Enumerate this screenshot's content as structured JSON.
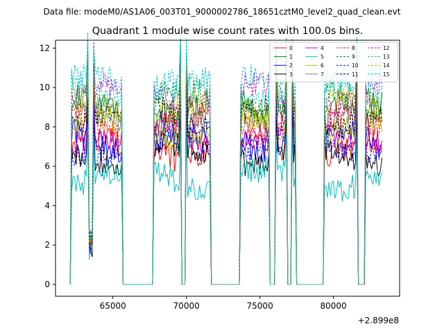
{
  "chart_data": {
    "type": "line",
    "suptitle": "Data file: modeM0/AS1A06_003T01_9000002786_18651cztM0_level2_quad_clean.evt",
    "title": "Quadrant 1 module wise count rates with 100.0s bins.",
    "xlabel": "",
    "ylabel": "",
    "x_offset_label": "+2.899e8",
    "xlim": [
      61100,
      84500
    ],
    "ylim": [
      -0.6,
      12.4
    ],
    "x_ticks": [
      65000,
      70000,
      75000,
      80000
    ],
    "y_ticks": [
      0,
      2,
      4,
      6,
      8,
      10,
      12
    ],
    "grid": false,
    "legend_position": "top-right",
    "active_intervals": [
      [
        62200,
        65600
      ],
      [
        67800,
        69600
      ],
      [
        70000,
        71600
      ],
      [
        73700,
        75600
      ],
      [
        76100,
        76800
      ],
      [
        77200,
        77400
      ],
      [
        79400,
        81600
      ],
      [
        82200,
        83300
      ]
    ],
    "dip_centers": [
      63500,
      69800,
      75900,
      77000,
      81800
    ],
    "series": [
      {
        "name": "0",
        "color": "#ff0000",
        "dash": "solid",
        "level": 6.9
      },
      {
        "name": "1",
        "color": "#008000",
        "dash": "solid",
        "level": 9.0
      },
      {
        "name": "2",
        "color": "#0000ff",
        "dash": "solid",
        "level": 7.3
      },
      {
        "name": "3",
        "color": "#000000",
        "dash": "solid",
        "level": 6.6
      },
      {
        "name": "4",
        "color": "#bf00bf",
        "dash": "solid",
        "level": 7.6
      },
      {
        "name": "5",
        "color": "#00bfbf",
        "dash": "solid",
        "level": 5.4
      },
      {
        "name": "6",
        "color": "#bfbf00",
        "dash": "solid",
        "level": 7.9
      },
      {
        "name": "7",
        "color": "#808080",
        "dash": "solid",
        "level": 8.3
      },
      {
        "name": "8",
        "color": "#ff0000",
        "dash": "dashed",
        "level": 8.1
      },
      {
        "name": "9",
        "color": "#008000",
        "dash": "dashed",
        "level": 9.3
      },
      {
        "name": "10",
        "color": "#0000ff",
        "dash": "dashed",
        "level": 7.1
      },
      {
        "name": "11",
        "color": "#000000",
        "dash": "dashed",
        "level": 8.6
      },
      {
        "name": "12",
        "color": "#bf00bf",
        "dash": "dashed",
        "level": 9.6
      },
      {
        "name": "13",
        "color": "#00bfbf",
        "dash": "dashed",
        "level": 10.2
      },
      {
        "name": "14",
        "color": "#bfbf00",
        "dash": "dashed",
        "level": 8.9
      },
      {
        "name": "15",
        "color": "#00bfbf",
        "dash": "dashed",
        "level": 9.9
      }
    ]
  }
}
